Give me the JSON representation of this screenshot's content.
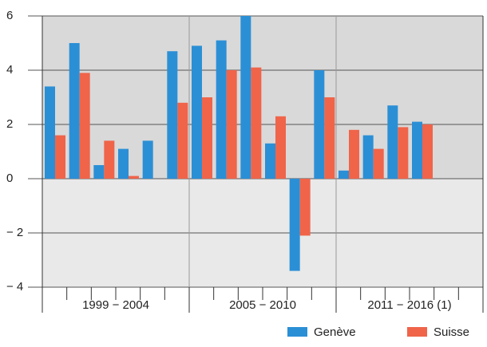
{
  "chart_data": {
    "type": "bar",
    "categories": [
      null,
      null,
      null,
      null,
      null,
      null,
      null,
      null,
      null,
      null,
      null,
      null,
      null,
      null,
      null,
      null,
      null,
      null
    ],
    "groups": [
      "1999 − 2004",
      "2005 − 2010",
      "2011 − 2016 (1)"
    ],
    "series": [
      {
        "name": "Genève",
        "color": "#2b8fd6",
        "values": [
          3.4,
          5.0,
          0.5,
          1.1,
          1.4,
          4.7,
          4.9,
          5.1,
          6.0,
          1.3,
          -3.4,
          4.0,
          0.3,
          1.6,
          2.7,
          2.1,
          null,
          null
        ]
      },
      {
        "name": "Suisse",
        "color": "#f0644a",
        "values": [
          1.6,
          3.9,
          1.4,
          0.1,
          null,
          2.8,
          3.0,
          4.0,
          4.1,
          2.3,
          -2.1,
          3.0,
          1.8,
          1.1,
          1.9,
          2.0,
          null,
          null
        ]
      }
    ],
    "ylim": [
      -4,
      6
    ],
    "yticks": [
      {
        "value": -4,
        "label": "− 4"
      },
      {
        "value": -2,
        "label": "− 2"
      },
      0,
      2,
      4,
      6
    ],
    "grid": true,
    "legend": "lower right"
  }
}
